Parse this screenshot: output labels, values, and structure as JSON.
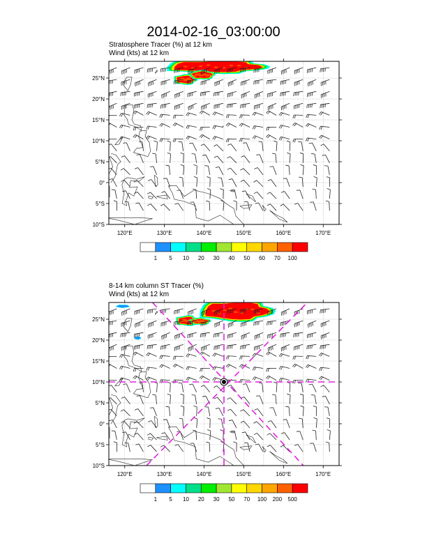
{
  "title": "2014-02-16_03:00:00",
  "colors": {
    "land_outline": "#222222",
    "grid": "#d0d0d0",
    "cross_section": "#e020e0",
    "barb": "#222222"
  },
  "chart_data": [
    {
      "type": "map",
      "panel": "top",
      "title_line1": "Stratosphere Tracer   (%)     at   12 km",
      "title_line2": "Wind    (kts)      at   12 km",
      "xlim": [
        116,
        174
      ],
      "ylim": [
        -10,
        29
      ],
      "xticks": [
        120,
        130,
        140,
        150,
        160,
        170
      ],
      "xtick_labels": [
        "120°E",
        "130°E",
        "140°E",
        "150°E",
        "160°E",
        "170°E"
      ],
      "yticks": [
        25,
        20,
        15,
        10,
        5,
        0,
        -5,
        -10
      ],
      "ytick_labels": [
        "25°N",
        "20°N",
        "15°N",
        "10°N",
        "5°N",
        "0°",
        "5°S",
        "10°S"
      ],
      "colorbar": {
        "labels": [
          "1",
          "5",
          "10",
          "20",
          "30",
          "40",
          "50",
          "60",
          "70",
          "100"
        ],
        "colors": [
          "#ffffff",
          "#1e90ff",
          "#00ffff",
          "#00e08a",
          "#00ee00",
          "#a0e632",
          "#ffff00",
          "#ffd700",
          "#ffa500",
          "#ff6000",
          "#ff0000"
        ]
      },
      "tracer_blobs": [
        {
          "lon_min": 132,
          "lon_max": 154,
          "lat_min": 26.5,
          "lat_max": 29,
          "level": "high"
        },
        {
          "lon_min": 133,
          "lon_max": 137.5,
          "lat_min": 23.8,
          "lat_max": 25.5,
          "level": "high"
        },
        {
          "lon_min": 137,
          "lon_max": 142,
          "lat_min": 25,
          "lat_max": 26.5,
          "level": "high"
        }
      ],
      "cross_section": false
    },
    {
      "type": "map",
      "panel": "bottom",
      "title_line1": "8-14 km column ST Tracer   (%)",
      "title_line2": "Wind    (kts)      at   12 km",
      "xlim": [
        116,
        174
      ],
      "ylim": [
        -10,
        29
      ],
      "xticks": [
        120,
        130,
        140,
        150,
        160,
        170
      ],
      "xtick_labels": [
        "120°E",
        "130°E",
        "140°E",
        "150°E",
        "160°E",
        "170°E"
      ],
      "yticks": [
        25,
        20,
        15,
        10,
        5,
        0,
        -5,
        -10
      ],
      "ytick_labels": [
        "25°N",
        "20°N",
        "15°N",
        "10°N",
        "5°N",
        "0°",
        "5°S",
        "10°S"
      ],
      "colorbar": {
        "labels": [
          "1",
          "5",
          "10",
          "20",
          "30",
          "50",
          "70",
          "100",
          "200",
          "500"
        ],
        "colors": [
          "#ffffff",
          "#1e90ff",
          "#00ffff",
          "#00e08a",
          "#00ee00",
          "#a0e632",
          "#ffff00",
          "#ffd700",
          "#ffa500",
          "#ff6000",
          "#ff0000"
        ]
      },
      "tracer_blobs": [
        {
          "lon_min": 140,
          "lon_max": 156,
          "lat_min": 25,
          "lat_max": 29,
          "level": "high"
        },
        {
          "lon_min": 133.5,
          "lon_max": 138,
          "lat_min": 23.8,
          "lat_max": 25.5,
          "level": "high"
        },
        {
          "lon_min": 137,
          "lon_max": 141,
          "lat_min": 24,
          "lat_max": 25,
          "level": "high"
        },
        {
          "lon_min": 118,
          "lon_max": 121,
          "lat_min": 27.8,
          "lat_max": 28.4,
          "level": "low"
        },
        {
          "lon_min": 122.5,
          "lon_max": 124,
          "lat_min": 20.2,
          "lat_max": 20.8,
          "level": "low"
        }
      ],
      "cross_section": true,
      "cross_center": [
        145,
        10
      ]
    }
  ]
}
